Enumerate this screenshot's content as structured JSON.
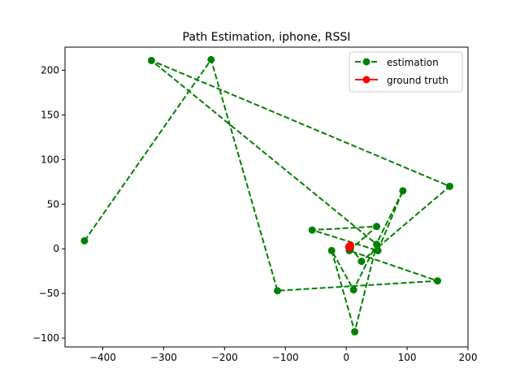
{
  "chart_data": {
    "type": "line",
    "title": "Path Estimation, iphone, RSSI",
    "xlabel": "",
    "ylabel": "",
    "xlim": [
      -462,
      200
    ],
    "ylim": [
      -110,
      226
    ],
    "xticks": [
      -400,
      -300,
      -200,
      -100,
      0,
      100,
      200
    ],
    "yticks": [
      -100,
      -50,
      0,
      50,
      100,
      150,
      200
    ],
    "grid": false,
    "legend_position": "upper right",
    "series": [
      {
        "name": "estimation",
        "color": "#008000",
        "linestyle": "dashed",
        "marker": "circle",
        "points": [
          [
            -430,
            9
          ],
          [
            -222,
            212
          ],
          [
            -113,
            -47
          ],
          [
            150,
            -36
          ],
          [
            5,
            -2
          ],
          [
            50,
            25
          ],
          [
            -56,
            21
          ],
          [
            52,
            -2
          ],
          [
            93,
            65
          ],
          [
            12,
            -46
          ],
          [
            -24,
            -2
          ],
          [
            14,
            -93
          ],
          [
            50,
            5
          ],
          [
            -320,
            211
          ],
          [
            170,
            70
          ],
          [
            25,
            -14
          ],
          [
            5,
            3
          ],
          [
            7,
            1
          ]
        ]
      },
      {
        "name": "ground truth",
        "color": "#ff0000",
        "linestyle": "solid",
        "marker": "circle",
        "points": [
          [
            5,
            3
          ],
          [
            7,
            4
          ],
          [
            6,
            1
          ],
          [
            4,
            2
          ]
        ]
      }
    ]
  }
}
